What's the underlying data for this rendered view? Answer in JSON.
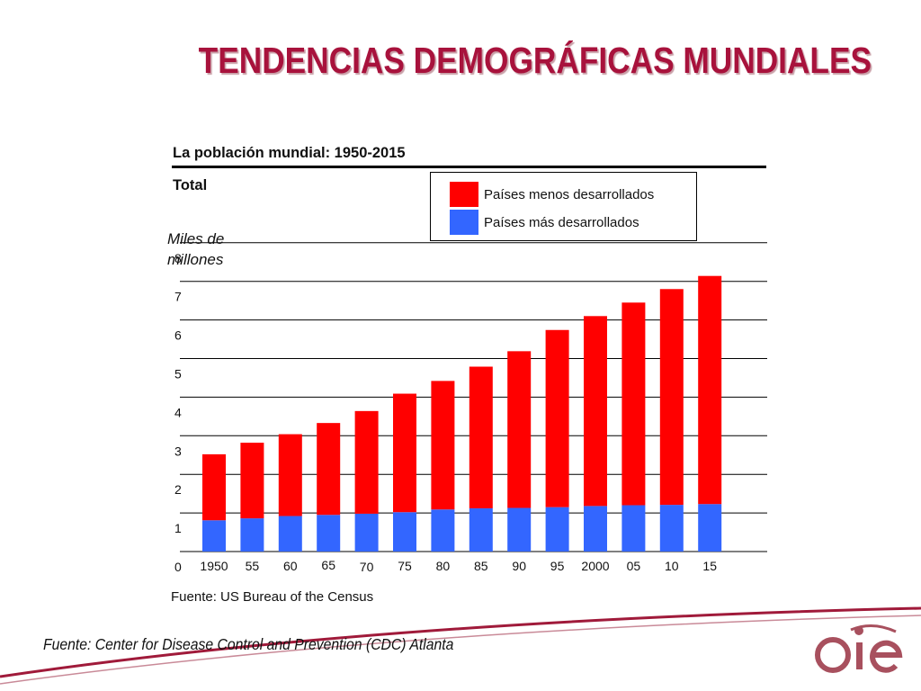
{
  "slide": {
    "title": "TENDENCIAS DEMOGRÁFICAS MUNDIALES",
    "footer_source": "Fuente: Center for Disease Control and Prevention (CDC) Atlanta",
    "logo_text": "oie",
    "colors": {
      "title": "#a8123c",
      "accent_line": "#a01a3a"
    }
  },
  "chart_data": {
    "type": "bar",
    "stacked": true,
    "title": "La población mundial:  1950-2015",
    "subtitle": "Total",
    "ylabel": "Miles de millones",
    "source": "Fuente:  US Bureau of the Census",
    "ylim": [
      0,
      8
    ],
    "yticks": [
      "0",
      "1",
      "2",
      "3",
      "4",
      "5",
      "6",
      "7",
      "8"
    ],
    "grid": true,
    "legend_position": "top-right",
    "categories": [
      "1950",
      "55",
      "60",
      "65",
      "70",
      "75",
      "80",
      "85",
      "90",
      "95",
      "2000",
      "05",
      "10",
      "15"
    ],
    "series": [
      {
        "name": "Países más desarrollados",
        "color": "#3366ff",
        "values": [
          0.81,
          0.86,
          0.92,
          0.95,
          0.98,
          1.02,
          1.09,
          1.12,
          1.13,
          1.15,
          1.18,
          1.2,
          1.21,
          1.23
        ]
      },
      {
        "name": "Países menos desarrollados",
        "color": "#ff0000",
        "values": [
          1.71,
          1.96,
          2.12,
          2.38,
          2.66,
          3.07,
          3.33,
          3.67,
          4.06,
          4.59,
          4.92,
          5.25,
          5.59,
          5.91
        ]
      }
    ],
    "legend": [
      {
        "label": "Países menos desarrollados",
        "color": "#ff0000"
      },
      {
        "label": "Países más desarrollados",
        "color": "#3366ff"
      }
    ]
  }
}
